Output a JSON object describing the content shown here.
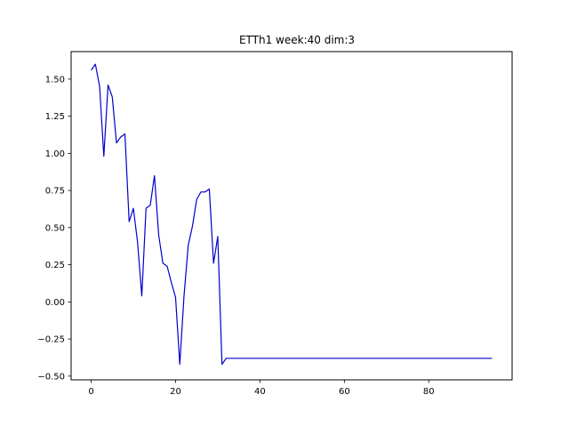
{
  "chart_data": {
    "type": "line",
    "title": "ETTh1 week:40 dim:3",
    "xlabel": "",
    "ylabel": "",
    "xlim": [
      -4.75,
      99.75
    ],
    "ylim": [
      -0.525,
      1.685
    ],
    "x_ticks": [
      0,
      20,
      40,
      60,
      80
    ],
    "y_ticks": [
      -0.5,
      -0.25,
      0.0,
      0.25,
      0.5,
      0.75,
      1.0,
      1.25,
      1.5
    ],
    "x_tick_labels": [
      "0",
      "20",
      "40",
      "60",
      "80"
    ],
    "y_tick_labels": [
      "−0.50",
      "−0.25",
      "0.00",
      "0.25",
      "0.50",
      "0.75",
      "1.00",
      "1.25",
      "1.50"
    ],
    "grid": false,
    "line_color": "#0000cc",
    "series": [
      {
        "x": [
          0,
          1,
          2,
          3,
          4,
          5,
          6,
          7,
          8,
          9,
          10,
          11,
          12,
          13,
          14,
          15,
          16,
          17,
          18,
          19,
          20,
          21,
          22,
          23,
          24,
          25,
          26,
          27,
          28,
          29,
          30,
          31,
          32,
          33,
          34,
          35,
          36,
          37,
          38,
          39,
          40,
          41,
          42,
          43,
          44,
          45,
          46,
          47,
          48,
          49,
          50,
          51,
          52,
          53,
          54,
          55,
          56,
          57,
          58,
          59,
          60,
          61,
          62,
          63,
          64,
          65,
          66,
          67,
          68,
          69,
          70,
          71,
          72,
          73,
          74,
          75,
          76,
          77,
          78,
          79,
          80,
          81,
          82,
          83,
          84,
          85,
          86,
          87,
          88,
          89,
          90,
          91,
          92,
          93,
          94,
          95
        ],
        "values": [
          1.56,
          1.6,
          1.45,
          0.98,
          1.46,
          1.38,
          1.07,
          1.11,
          1.13,
          0.54,
          0.63,
          0.4,
          0.04,
          0.63,
          0.65,
          0.85,
          0.45,
          0.26,
          0.24,
          0.13,
          0.03,
          -0.42,
          0.04,
          0.38,
          0.51,
          0.69,
          0.74,
          0.74,
          0.76,
          0.26,
          0.44,
          -0.42,
          -0.38,
          -0.38,
          -0.38,
          -0.38,
          -0.38,
          -0.38,
          -0.38,
          -0.38,
          -0.38,
          -0.38,
          -0.38,
          -0.38,
          -0.38,
          -0.38,
          -0.38,
          -0.38,
          -0.38,
          -0.38,
          -0.38,
          -0.38,
          -0.38,
          -0.38,
          -0.38,
          -0.38,
          -0.38,
          -0.38,
          -0.38,
          -0.38,
          -0.38,
          -0.38,
          -0.38,
          -0.38,
          -0.38,
          -0.38,
          -0.38,
          -0.38,
          -0.38,
          -0.38,
          -0.38,
          -0.38,
          -0.38,
          -0.38,
          -0.38,
          -0.38,
          -0.38,
          -0.38,
          -0.38,
          -0.38,
          -0.38,
          -0.38,
          -0.38,
          -0.38,
          -0.38,
          -0.38,
          -0.38,
          -0.38,
          -0.38,
          -0.38,
          -0.38,
          -0.38,
          -0.38,
          -0.38,
          -0.38,
          -0.38
        ]
      }
    ]
  }
}
